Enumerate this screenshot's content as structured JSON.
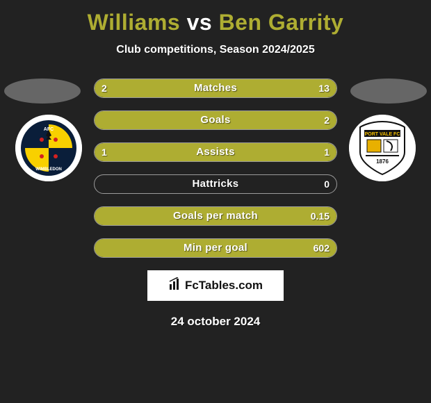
{
  "title": {
    "player1": "Williams",
    "vs": "vs",
    "player2": "Ben Garrity",
    "player1_color": "#aead32",
    "player2_color": "#aead32"
  },
  "subtitle": "Club competitions, Season 2024/2025",
  "bars": {
    "left_color": "#aead32",
    "right_color": "#aead32",
    "items": [
      {
        "label": "Matches",
        "left": "2",
        "right": "13",
        "left_pct": 13,
        "right_pct": 87
      },
      {
        "label": "Goals",
        "left": "",
        "right": "2",
        "left_pct": 0,
        "right_pct": 100
      },
      {
        "label": "Assists",
        "left": "1",
        "right": "1",
        "left_pct": 50,
        "right_pct": 50
      },
      {
        "label": "Hattricks",
        "left": "",
        "right": "0",
        "left_pct": 0,
        "right_pct": 0
      },
      {
        "label": "Goals per match",
        "left": "",
        "right": "0.15",
        "left_pct": 0,
        "right_pct": 100
      },
      {
        "label": "Min per goal",
        "left": "",
        "right": "602",
        "left_pct": 0,
        "right_pct": 100
      }
    ]
  },
  "brand": "FcTables.com",
  "date": "24 october 2024",
  "clubs": {
    "left_label": "AFC Wimbledon",
    "right_label": "Port Vale FC"
  },
  "style": {
    "background": "#222222",
    "bar_border": "rgba(255,255,255,0.55)",
    "text_shadow": "1px 1px 1px rgba(0,0,0,0.5)"
  }
}
